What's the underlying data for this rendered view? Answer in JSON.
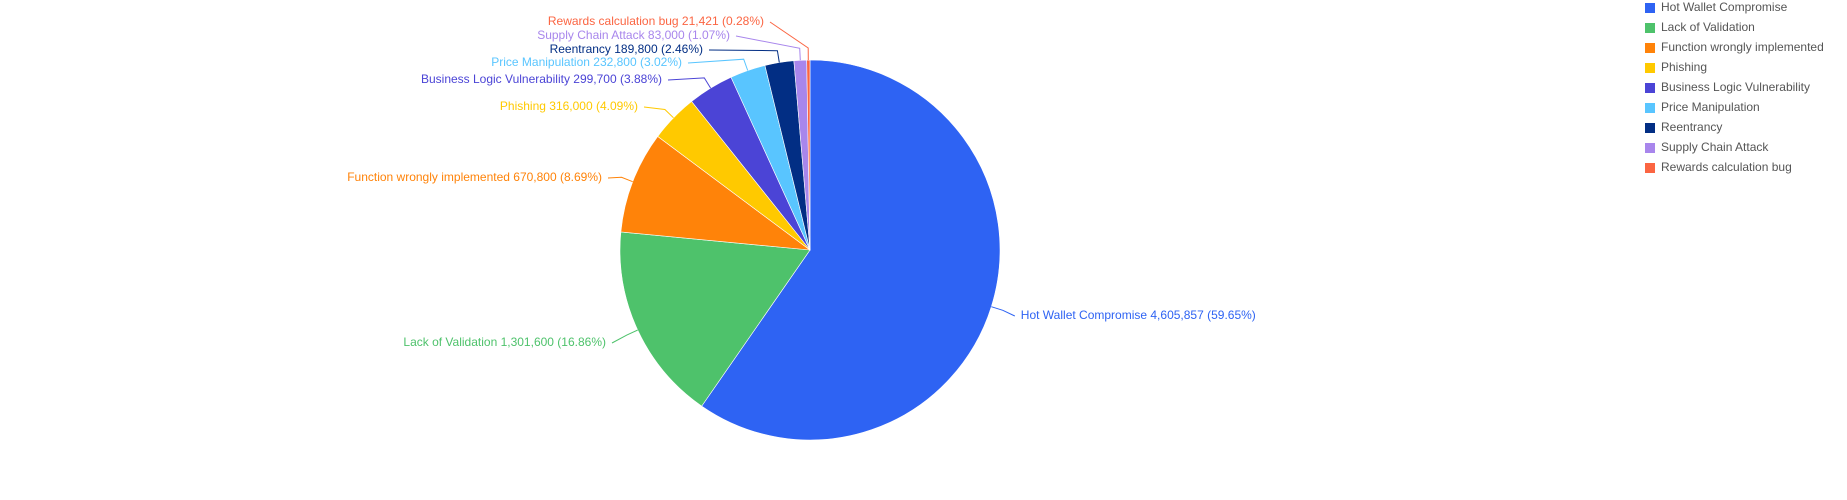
{
  "chart_data": {
    "type": "pie",
    "title": "",
    "legend_position": "top-right",
    "start_angle_deg": 0,
    "direction": "clockwise",
    "slices": [
      {
        "name": "Hot Wallet Compromise",
        "value": 4605857,
        "value_label": "4,605,857",
        "percent_label": "59.65%",
        "color": "#2e63f3"
      },
      {
        "name": "Lack of Validation",
        "value": 1301600,
        "value_label": "1,301,600",
        "percent_label": "16.86%",
        "color": "#4ec26b"
      },
      {
        "name": "Function wrongly implemented",
        "value": 670800,
        "value_label": "670,800",
        "percent_label": "8.69%",
        "color": "#ff8309"
      },
      {
        "name": "Phishing",
        "value": 316000,
        "value_label": "316,000",
        "percent_label": "4.09%",
        "color": "#ffc900"
      },
      {
        "name": "Business Logic Vulnerability",
        "value": 299700,
        "value_label": "299,700",
        "percent_label": "3.88%",
        "color": "#4b44d6"
      },
      {
        "name": "Price Manipulation",
        "value": 232800,
        "value_label": "232,800",
        "percent_label": "3.02%",
        "color": "#59c5ff"
      },
      {
        "name": "Reentrancy",
        "value": 189800,
        "value_label": "189,800",
        "percent_label": "2.46%",
        "color": "#022e84"
      },
      {
        "name": "Supply Chain Attack",
        "value": 83000,
        "value_label": "83,000",
        "percent_label": "1.07%",
        "color": "#a886ec"
      },
      {
        "name": "Rewards calculation bug",
        "value": 21421,
        "value_label": "21,421",
        "percent_label": "0.28%",
        "color": "#fb6542"
      }
    ]
  }
}
